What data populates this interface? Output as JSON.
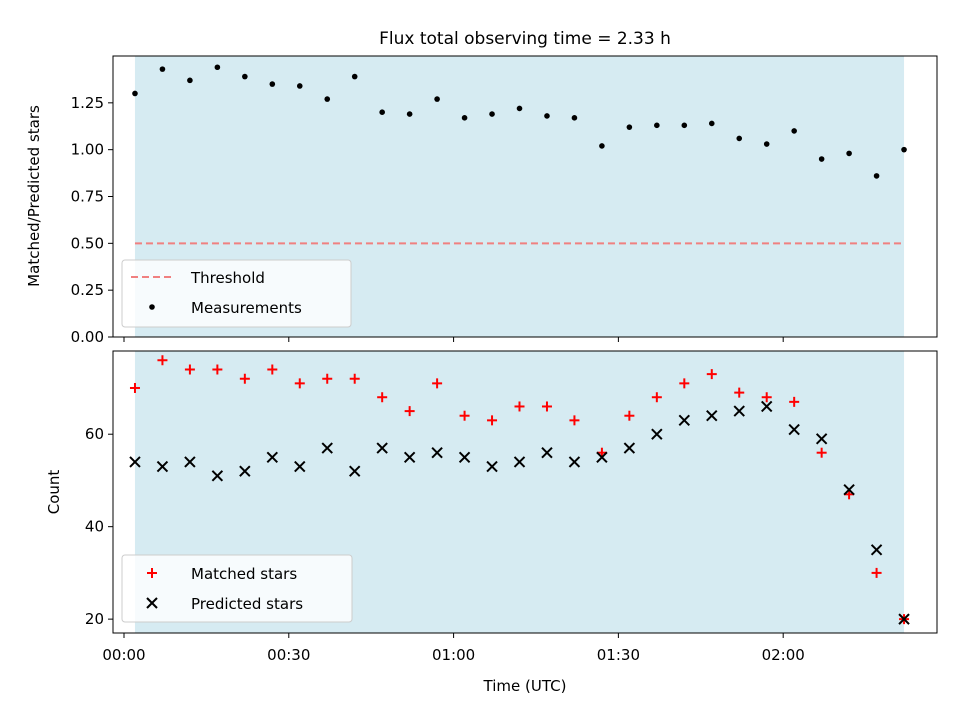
{
  "chart_data": [
    {
      "type": "scatter",
      "title": "Flux total observing time = 2.33 h",
      "xlabel": "",
      "ylabel": "Matched/Predicted stars",
      "xlim": [
        "23:58",
        "02:28"
      ],
      "ylim": [
        0,
        1.5
      ],
      "yticks": [
        "0.00",
        "0.25",
        "0.50",
        "0.75",
        "1.00",
        "1.25"
      ],
      "shaded_span": [
        "00:02",
        "02:22"
      ],
      "threshold": {
        "name": "Threshold",
        "value": 0.5,
        "color": "#f08080"
      },
      "legend_position": "lower-left",
      "series": [
        {
          "name": "Measurements",
          "color": "#000000",
          "x": [
            "00:02",
            "00:07",
            "00:12",
            "00:17",
            "00:22",
            "00:27",
            "00:32",
            "00:37",
            "00:42",
            "00:47",
            "00:52",
            "00:57",
            "01:02",
            "01:07",
            "01:12",
            "01:17",
            "01:22",
            "01:27",
            "01:32",
            "01:37",
            "01:42",
            "01:47",
            "01:52",
            "01:57",
            "02:02",
            "02:07",
            "02:12",
            "02:17",
            "02:22"
          ],
          "y": [
            1.3,
            1.43,
            1.37,
            1.44,
            1.39,
            1.35,
            1.34,
            1.27,
            1.39,
            1.2,
            1.19,
            1.27,
            1.17,
            1.19,
            1.22,
            1.18,
            1.17,
            1.02,
            1.12,
            1.13,
            1.13,
            1.14,
            1.06,
            1.03,
            1.1,
            0.95,
            0.98,
            0.86,
            1.0
          ]
        }
      ]
    },
    {
      "type": "scatter",
      "title": "",
      "xlabel": "Time (UTC)",
      "ylabel": "Count",
      "xlim": [
        "23:58",
        "02:28"
      ],
      "xticks": [
        "00:00",
        "00:30",
        "01:00",
        "01:30",
        "02:00"
      ],
      "ylim": [
        17,
        78
      ],
      "yticks": [
        "20",
        "40",
        "60"
      ],
      "shaded_span": [
        "00:02",
        "02:22"
      ],
      "legend_position": "lower-left",
      "series": [
        {
          "name": "Matched stars",
          "marker": "+",
          "color": "#ff0000",
          "x": [
            "00:02",
            "00:07",
            "00:12",
            "00:17",
            "00:22",
            "00:27",
            "00:32",
            "00:37",
            "00:42",
            "00:47",
            "00:52",
            "00:57",
            "01:02",
            "01:07",
            "01:12",
            "01:17",
            "01:22",
            "01:27",
            "01:32",
            "01:37",
            "01:42",
            "01:47",
            "01:52",
            "01:57",
            "02:02",
            "02:07",
            "02:12",
            "02:17",
            "02:22"
          ],
          "y": [
            70,
            76,
            74,
            74,
            72,
            74,
            71,
            72,
            72,
            68,
            65,
            71,
            64,
            63,
            66,
            66,
            63,
            56,
            64,
            68,
            71,
            73,
            69,
            68,
            67,
            56,
            47,
            30,
            20
          ]
        },
        {
          "name": "Predicted stars",
          "marker": "x",
          "color": "#000000",
          "x": [
            "00:02",
            "00:07",
            "00:12",
            "00:17",
            "00:22",
            "00:27",
            "00:32",
            "00:37",
            "00:42",
            "00:47",
            "00:52",
            "00:57",
            "01:02",
            "01:07",
            "01:12",
            "01:17",
            "01:22",
            "01:27",
            "01:32",
            "01:37",
            "01:42",
            "01:47",
            "01:52",
            "01:57",
            "02:02",
            "02:07",
            "02:12",
            "02:17",
            "02:22"
          ],
          "y": [
            54,
            53,
            54,
            51,
            52,
            55,
            53,
            57,
            52,
            57,
            55,
            56,
            55,
            53,
            54,
            56,
            54,
            55,
            57,
            60,
            63,
            64,
            65,
            66,
            61,
            59,
            48,
            35,
            20
          ]
        }
      ]
    }
  ]
}
